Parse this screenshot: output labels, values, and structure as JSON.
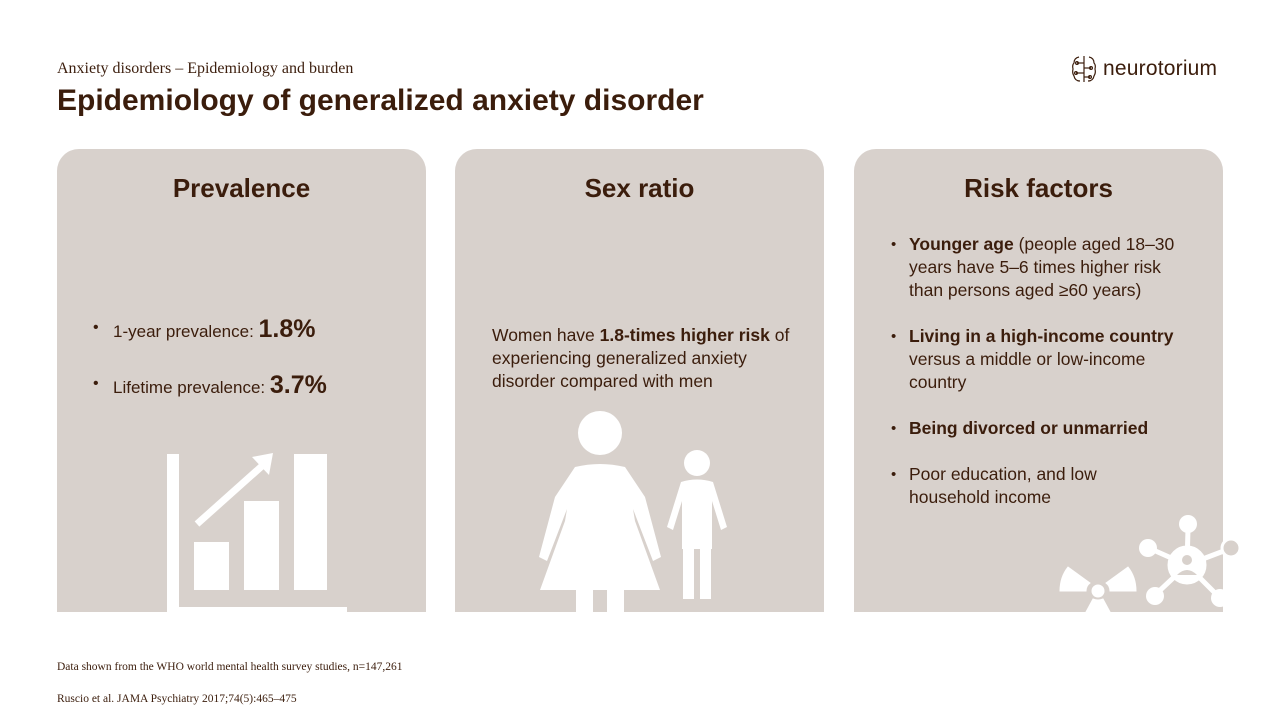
{
  "header": {
    "subtitle": "Anxiety disorders – Epidemiology and burden",
    "title": "Epidemiology of generalized anxiety disorder"
  },
  "logo": {
    "text": "neurotorium",
    "icon": "brain-circuit-icon"
  },
  "cards": {
    "prevalence": {
      "title": "Prevalence",
      "items": [
        {
          "label": "1-year prevalence: ",
          "value": "1.8%"
        },
        {
          "label": "Lifetime prevalence: ",
          "value": "3.7%"
        }
      ],
      "icon": "growth-chart-icon"
    },
    "sex_ratio": {
      "title": "Sex ratio",
      "text_before": "Women have ",
      "text_bold": "1.8-times higher risk",
      "text_after": " of experiencing generalized anxiety disorder compared with men",
      "icon": "woman-and-child-icon"
    },
    "risk_factors": {
      "title": "Risk factors",
      "items": [
        {
          "bold": "Younger age",
          "rest": " (people aged 18–30 years have 5–6 times higher risk than persons aged ≥60 years)"
        },
        {
          "bold": "Living in a high-income country",
          "rest": " versus a middle or low-income country"
        },
        {
          "bold": "Being divorced or unmarried",
          "rest": ""
        },
        {
          "bold": "",
          "rest": "Poor education, and low household income"
        }
      ],
      "icons": [
        "radiation-icon",
        "network-person-icon"
      ]
    }
  },
  "footer": {
    "note": "Data shown from the WHO world mental health survey studies, n=147,261",
    "reference": "Ruscio et al. JAMA Psychiatry 2017;74(5):465–475"
  },
  "colors": {
    "text": "#3b1d0c",
    "card": "#d8d1cc",
    "icon": "#ffffff"
  }
}
